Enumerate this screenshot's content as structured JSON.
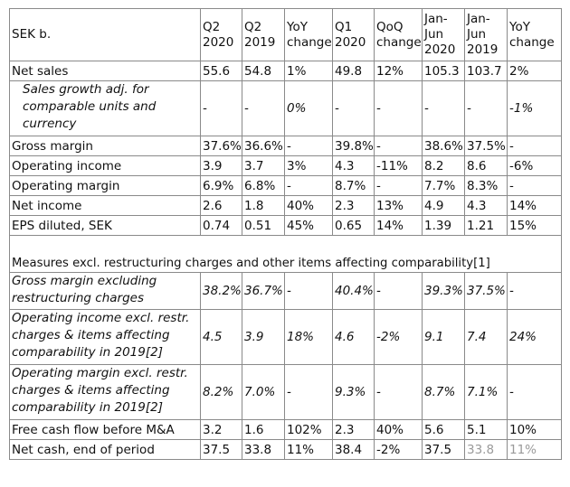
{
  "table": {
    "headers": [
      "SEK b.",
      "Q2 2020",
      "Q2 2019",
      "YoY change",
      "Q1 2020",
      "QoQ change",
      "Jan-Jun 2020",
      "Jan-Jun 2019",
      "YoY change"
    ],
    "rows": [
      {
        "label": "Net sales",
        "italic": false,
        "values": [
          "55.6",
          "54.8",
          "1%",
          "49.8",
          "12%",
          "105.3",
          "103.7",
          "2%"
        ]
      },
      {
        "label": "Sales growth adj. for comparable units and currency",
        "italic": true,
        "values": [
          "-",
          "-",
          "0%",
          "-",
          "-",
          "-",
          "-",
          "-1%"
        ]
      },
      {
        "label": "Gross margin",
        "italic": false,
        "values": [
          "37.6%",
          "36.6%",
          "-",
          "39.8%",
          "-",
          "38.6%",
          "37.5%",
          "-"
        ]
      },
      {
        "label": "Operating income",
        "italic": false,
        "values": [
          "3.9",
          "3.7",
          "3%",
          "4.3",
          "-11%",
          "8.2",
          "8.6",
          "-6%"
        ]
      },
      {
        "label": "Operating margin",
        "italic": false,
        "values": [
          "6.9%",
          "6.8%",
          "-",
          "8.7%",
          "-",
          "7.7%",
          "8.3%",
          "-"
        ]
      },
      {
        "label": "Net income",
        "italic": false,
        "values": [
          "2.6",
          "1.8",
          "40%",
          "2.3",
          "13%",
          "4.9",
          "4.3",
          "14%"
        ]
      },
      {
        "label": "EPS diluted, SEK",
        "italic": false,
        "values": [
          "0.74",
          "0.51",
          "45%",
          "0.65",
          "14%",
          "1.39",
          "1.21",
          "15%"
        ]
      }
    ],
    "section_title": "Measures excl. restructuring charges and other items affecting comparability[1]",
    "rows2": [
      {
        "label": "Gross margin excluding restructuring charges",
        "italic": true,
        "values": [
          "38.2%",
          "36.7%",
          "-",
          "40.4%",
          "-",
          "39.3%",
          "37.5%",
          "-"
        ]
      },
      {
        "label": "Operating income excl. restr. charges & items affecting comparability in 2019[2]",
        "italic": true,
        "values": [
          "4.5",
          "3.9",
          "18%",
          "4.6",
          "-2%",
          "9.1",
          "7.4",
          "24%"
        ]
      },
      {
        "label": "Operating margin excl. restr. charges & items affecting comparability in 2019[2]",
        "italic": true,
        "values": [
          "8.2%",
          "7.0%",
          "-",
          "9.3%",
          "-",
          "8.7%",
          "7.1%",
          "-"
        ]
      },
      {
        "label": "Free cash flow before M&A",
        "italic": false,
        "values": [
          "3.2",
          "1.6",
          "102%",
          "2.3",
          "40%",
          "5.6",
          "5.1",
          "10%"
        ]
      },
      {
        "label": "Net cash, end of period",
        "italic": false,
        "values": [
          "37.5",
          "33.8",
          "11%",
          "38.4",
          "-2%",
          "37.5",
          "33.8",
          "11%"
        ]
      }
    ]
  }
}
